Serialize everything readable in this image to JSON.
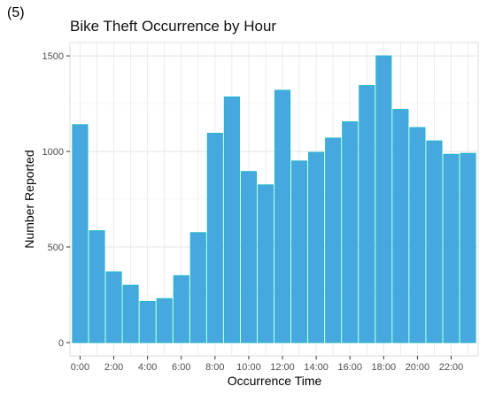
{
  "panel_label": "(5)",
  "chart_data": {
    "type": "bar",
    "title": "Bike Theft Occurrence by Hour",
    "xlabel": "Occurrence Time",
    "ylabel": "Number Reported",
    "categories": [
      "0:00",
      "1:00",
      "2:00",
      "3:00",
      "4:00",
      "5:00",
      "6:00",
      "7:00",
      "8:00",
      "9:00",
      "10:00",
      "11:00",
      "12:00",
      "13:00",
      "14:00",
      "15:00",
      "16:00",
      "17:00",
      "18:00",
      "19:00",
      "20:00",
      "21:00",
      "22:00",
      "23:00"
    ],
    "values": [
      1140,
      585,
      370,
      300,
      215,
      230,
      350,
      575,
      1095,
      1285,
      895,
      825,
      1320,
      950,
      995,
      1070,
      1155,
      1345,
      1500,
      1220,
      1125,
      1055,
      985,
      990
    ],
    "x_tick_labels": [
      "0:00",
      "2:00",
      "4:00",
      "6:00",
      "8:00",
      "10:00",
      "12:00",
      "14:00",
      "16:00",
      "18:00",
      "20:00",
      "22:00"
    ],
    "y_ticks": [
      0,
      500,
      1000,
      1500
    ],
    "ylim": [
      -70,
      1570
    ],
    "grid": true,
    "bar_color": "#47a8e0",
    "bar_border_color": "#23b7c9"
  }
}
